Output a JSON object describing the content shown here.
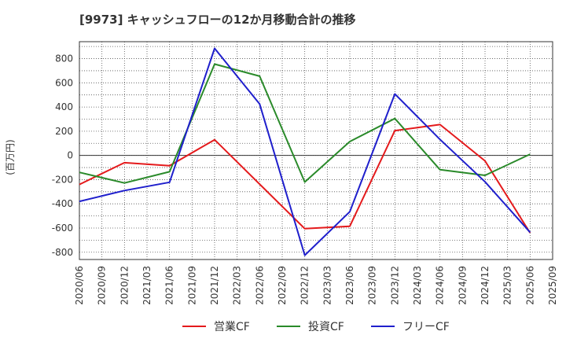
{
  "chart_data": {
    "type": "line",
    "title": "[9973]  キャッシュフローの12か月移動合計の推移",
    "ylabel": "(百万円)",
    "xlabel": "",
    "ylim": [
      -860,
      940
    ],
    "yticks": [
      800,
      600,
      400,
      200,
      0,
      -200,
      -400,
      -600,
      -800
    ],
    "x": [
      "2020/06",
      "2020/09",
      "2020/12",
      "2021/03",
      "2021/06",
      "2021/09",
      "2021/12",
      "2022/03",
      "2022/06",
      "2022/09",
      "2022/12",
      "2023/03",
      "2023/06",
      "2023/09",
      "2023/12",
      "2024/03",
      "2024/06",
      "2024/09",
      "2024/12",
      "2025/03",
      "2025/06",
      "2025/09"
    ],
    "grid": true,
    "legend_position": "bottom",
    "series": [
      {
        "name": "営業CF",
        "color": "#e41a1c",
        "points": [
          [
            0,
            -240
          ],
          [
            2,
            -60
          ],
          [
            4,
            -85
          ],
          [
            6,
            130
          ],
          [
            10,
            -605
          ],
          [
            12,
            -585
          ],
          [
            14,
            205
          ],
          [
            16,
            255
          ],
          [
            18,
            -45
          ],
          [
            20,
            -640
          ]
        ]
      },
      {
        "name": "投資CF",
        "color": "#2a8a2a",
        "points": [
          [
            0,
            -140
          ],
          [
            2,
            -228
          ],
          [
            4,
            -135
          ],
          [
            6,
            755
          ],
          [
            8,
            655
          ],
          [
            10,
            -220
          ],
          [
            12,
            115
          ],
          [
            14,
            305
          ],
          [
            16,
            -118
          ],
          [
            18,
            -165
          ],
          [
            20,
            10
          ]
        ]
      },
      {
        "name": "フリーCF",
        "color": "#1f1fcc",
        "points": [
          [
            0,
            -380
          ],
          [
            2,
            -290
          ],
          [
            4,
            -222
          ],
          [
            6,
            885
          ],
          [
            8,
            425
          ],
          [
            10,
            -825
          ],
          [
            12,
            -465
          ],
          [
            14,
            508
          ],
          [
            16,
            132
          ],
          [
            18,
            -218
          ],
          [
            20,
            -635
          ]
        ]
      }
    ]
  }
}
